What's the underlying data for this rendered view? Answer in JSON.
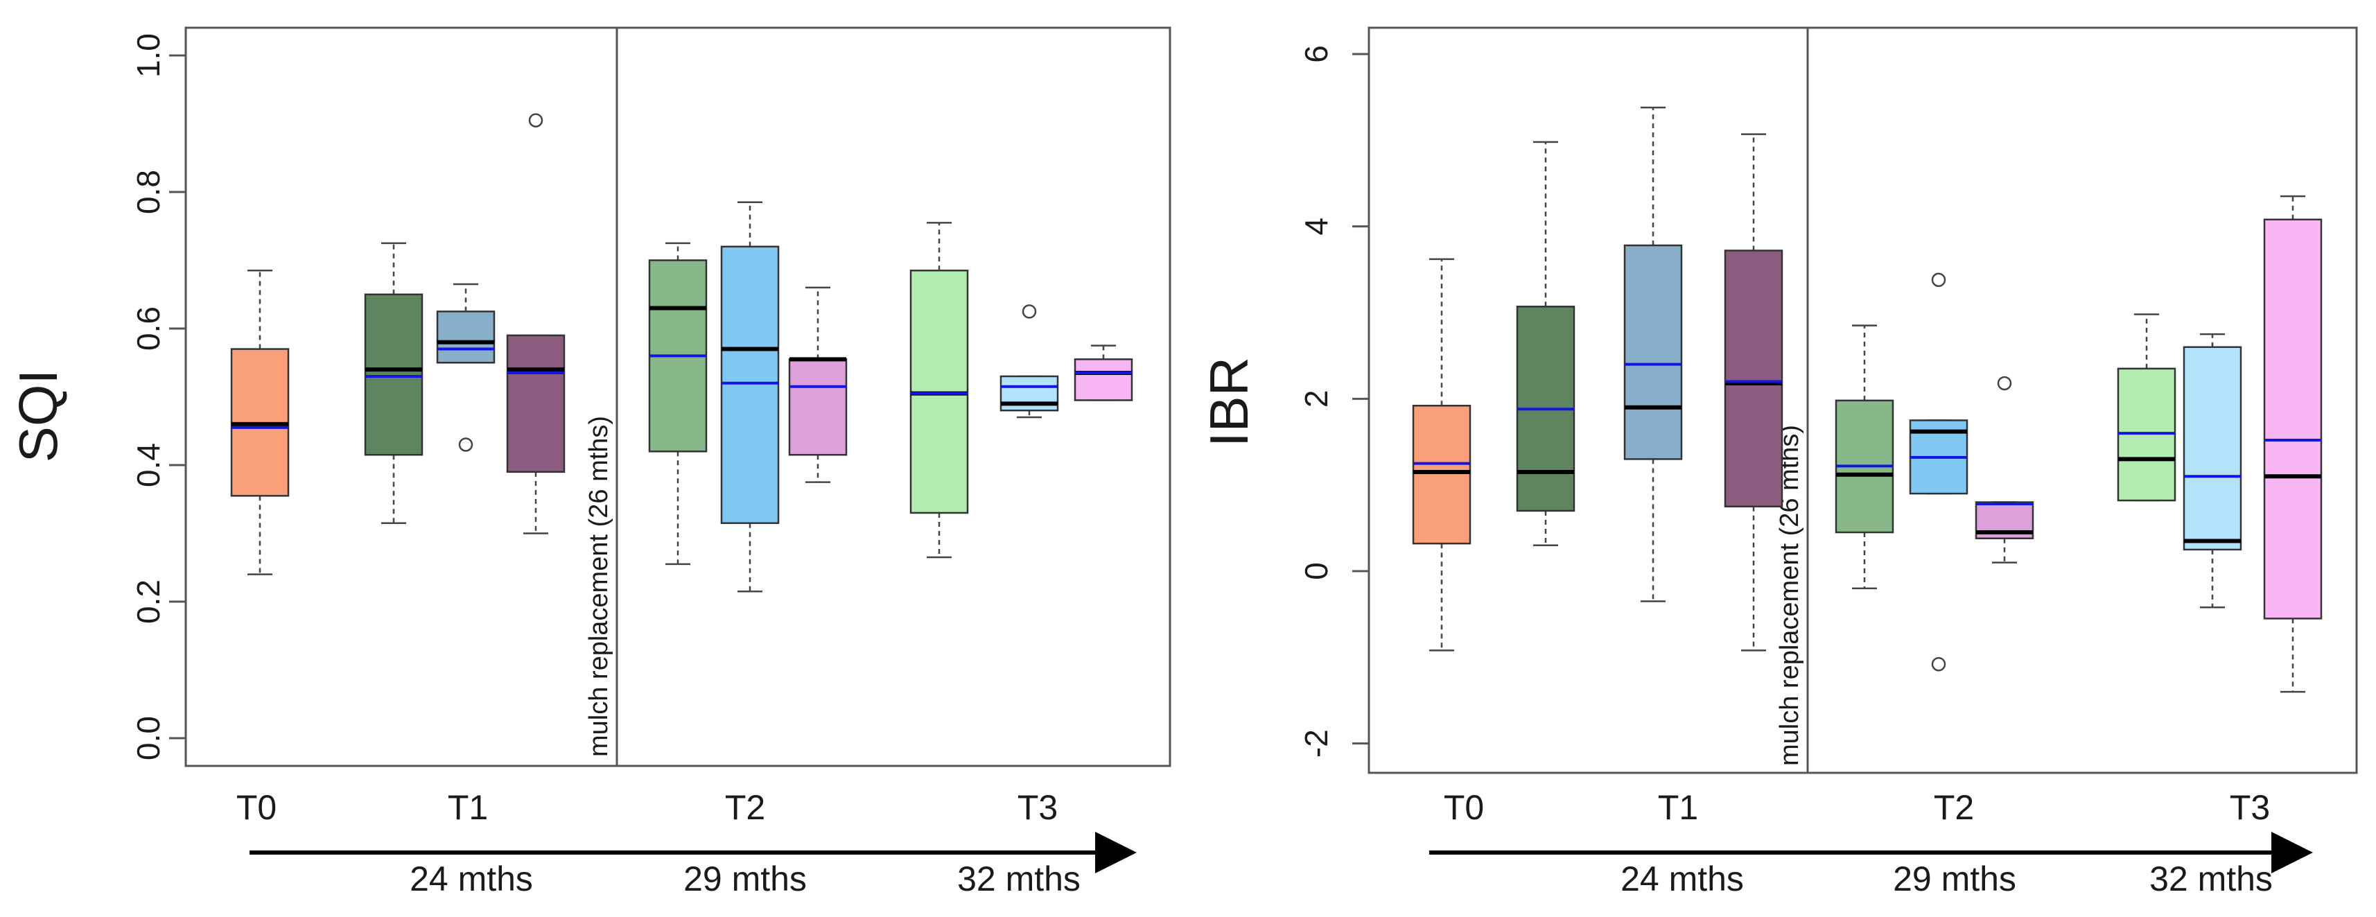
{
  "chart_data": [
    {
      "type": "box",
      "ylabel": "SQI",
      "ylim": [
        0,
        1.0
      ],
      "yticks": [
        "0.0",
        "0.2",
        "0.4",
        "0.6",
        "0.8",
        "1.0"
      ],
      "annotation": "mulch replacement (26 mths)",
      "groups": [
        {
          "label": "T0",
          "time": ""
        },
        {
          "label": "T1",
          "time": "24 mths"
        },
        {
          "label": "T2",
          "time": "29 mths"
        },
        {
          "label": "T3",
          "time": "32 mths"
        }
      ],
      "boxes": [
        {
          "group": "T0",
          "color": "#f9a07a",
          "wlo": 0.24,
          "q1": 0.355,
          "median": 0.46,
          "mean": 0.455,
          "q3": 0.57,
          "whi": 0.685,
          "outliers": []
        },
        {
          "group": "T1",
          "color": "#5e8460",
          "wlo": 0.315,
          "q1": 0.415,
          "median": 0.54,
          "mean": 0.53,
          "q3": 0.65,
          "whi": 0.725,
          "outliers": []
        },
        {
          "group": "T1",
          "color": "#87afc9",
          "wlo": 0.55,
          "q1": 0.55,
          "median": 0.58,
          "mean": 0.57,
          "q3": 0.625,
          "whi": 0.665,
          "outliers": [
            0.43
          ]
        },
        {
          "group": "T1",
          "color": "#8b5c80",
          "wlo": 0.3,
          "q1": 0.39,
          "median": 0.54,
          "mean": 0.535,
          "q3": 0.59,
          "whi": 0.59,
          "outliers": [
            0.905
          ]
        },
        {
          "group": "T2",
          "color": "#88b88a",
          "wlo": 0.255,
          "q1": 0.42,
          "median": 0.63,
          "mean": 0.56,
          "q3": 0.7,
          "whi": 0.725,
          "outliers": []
        },
        {
          "group": "T2",
          "color": "#82c8f4",
          "wlo": 0.215,
          "q1": 0.315,
          "median": 0.57,
          "mean": 0.52,
          "q3": 0.72,
          "whi": 0.785,
          "outliers": []
        },
        {
          "group": "T2",
          "color": "#dca0da",
          "wlo": 0.375,
          "q1": 0.415,
          "median": 0.555,
          "mean": 0.515,
          "q3": 0.555,
          "whi": 0.66,
          "outliers": []
        },
        {
          "group": "T3",
          "color": "#b3ecb1",
          "wlo": 0.265,
          "q1": 0.33,
          "median": 0.505,
          "mean": 0.505,
          "q3": 0.685,
          "whi": 0.755,
          "outliers": []
        },
        {
          "group": "T3",
          "color": "#b3e2fb",
          "wlo": 0.47,
          "q1": 0.48,
          "median": 0.49,
          "mean": 0.515,
          "q3": 0.53,
          "whi": 0.53,
          "outliers": [
            0.625
          ]
        },
        {
          "group": "T3",
          "color": "#f9b6f5",
          "wlo": 0.495,
          "q1": 0.495,
          "median": 0.535,
          "mean": 0.535,
          "q3": 0.555,
          "whi": 0.575,
          "outliers": []
        }
      ]
    },
    {
      "type": "box",
      "ylabel": "IBR",
      "ylim": [
        -2.3,
        6.3
      ],
      "yticks": [
        "-2",
        "0",
        "2",
        "4",
        "6"
      ],
      "annotation": "mulch replacement (26 mths)",
      "groups": [
        {
          "label": "T0",
          "time": ""
        },
        {
          "label": "T1",
          "time": "24 mths"
        },
        {
          "label": "T2",
          "time": "29 mths"
        },
        {
          "label": "T3",
          "time": "32 mths"
        }
      ],
      "boxes": [
        {
          "group": "T0",
          "color": "#f9a07a",
          "wlo": -0.92,
          "q1": 0.32,
          "median": 1.15,
          "mean": 1.25,
          "q3": 1.92,
          "whi": 3.62,
          "outliers": []
        },
        {
          "group": "T1",
          "color": "#5e8460",
          "wlo": 0.3,
          "q1": 0.7,
          "median": 1.15,
          "mean": 1.88,
          "q3": 3.07,
          "whi": 4.98,
          "outliers": []
        },
        {
          "group": "T1",
          "color": "#87afc9",
          "wlo": -0.35,
          "q1": 1.3,
          "median": 1.9,
          "mean": 2.4,
          "q3": 3.78,
          "whi": 5.38,
          "outliers": []
        },
        {
          "group": "T1",
          "color": "#8b5c80",
          "wlo": -0.92,
          "q1": 0.75,
          "median": 2.18,
          "mean": 2.2,
          "q3": 3.72,
          "whi": 5.07,
          "outliers": []
        },
        {
          "group": "T2",
          "color": "#88b88a",
          "wlo": -0.2,
          "q1": 0.45,
          "median": 1.12,
          "mean": 1.22,
          "q3": 1.98,
          "whi": 2.85,
          "outliers": []
        },
        {
          "group": "T2",
          "color": "#82c8f4",
          "wlo": 0.9,
          "q1": 0.9,
          "median": 1.62,
          "mean": 1.32,
          "q3": 1.75,
          "whi": 1.75,
          "outliers": [
            3.38,
            -1.08
          ]
        },
        {
          "group": "T2",
          "color": "#dca0da",
          "wlo": 0.1,
          "q1": 0.38,
          "median": 0.45,
          "mean": 0.78,
          "q3": 0.8,
          "whi": 0.8,
          "outliers": [
            2.18
          ]
        },
        {
          "group": "T3",
          "color": "#b3ecb1",
          "wlo": 0.82,
          "q1": 0.82,
          "median": 1.3,
          "mean": 1.6,
          "q3": 2.35,
          "whi": 2.98,
          "outliers": []
        },
        {
          "group": "T3",
          "color": "#b3e2fb",
          "wlo": -0.42,
          "q1": 0.25,
          "median": 0.35,
          "mean": 1.1,
          "q3": 2.6,
          "whi": 2.75,
          "outliers": []
        },
        {
          "group": "T3",
          "color": "#f9b6f5",
          "wlo": -1.4,
          "q1": -0.55,
          "median": 1.1,
          "mean": 1.52,
          "q3": 4.08,
          "whi": 4.35,
          "outliers": []
        }
      ]
    }
  ]
}
